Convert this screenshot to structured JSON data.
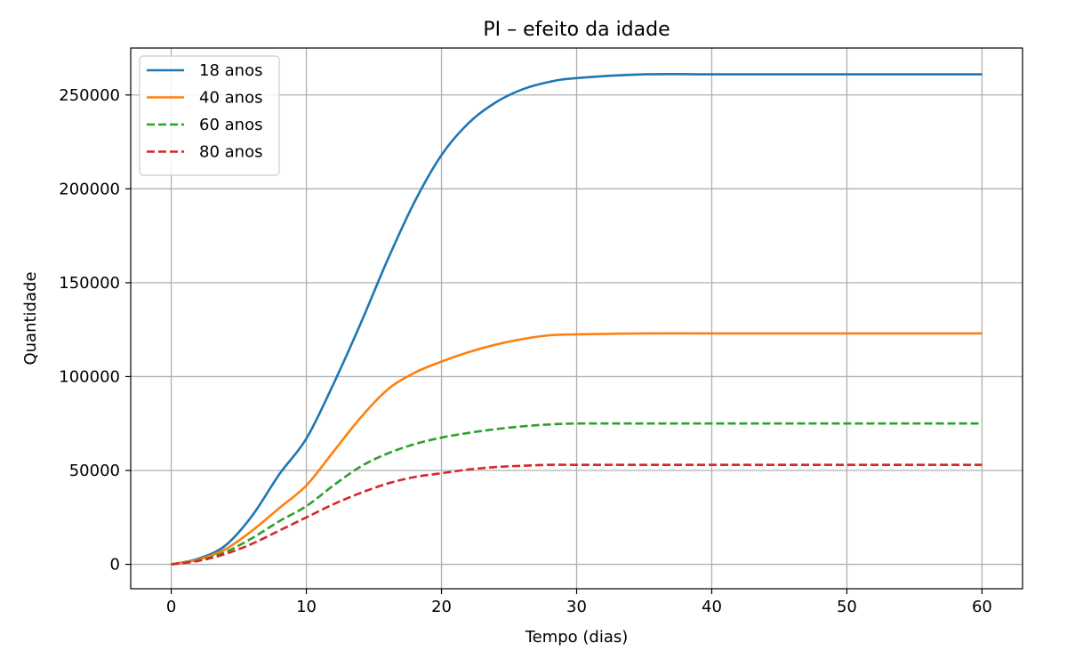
{
  "chart_data": {
    "type": "line",
    "title": "PI – efeito da idade",
    "xlabel": "Tempo (dias)",
    "ylabel": "Quantidade",
    "xlim": [
      -3,
      63
    ],
    "ylim": [
      -13000,
      275000
    ],
    "xticks": [
      0,
      10,
      20,
      30,
      40,
      50,
      60
    ],
    "yticks": [
      0,
      50000,
      100000,
      150000,
      200000,
      250000
    ],
    "grid": true,
    "legend_position": "top-left",
    "x": [
      0,
      2,
      4,
      6,
      8,
      10,
      12,
      14,
      16,
      18,
      20,
      22,
      24,
      26,
      28,
      30,
      35,
      40,
      45,
      50,
      55,
      60
    ],
    "series": [
      {
        "name": "18 anos",
        "color": "#1f77b4",
        "dash": "solid",
        "values": [
          0,
          3000,
          10000,
          26000,
          48000,
          67000,
          96000,
          128000,
          162000,
          193000,
          218000,
          235000,
          246000,
          253000,
          257000,
          259000,
          261000,
          261000,
          261000,
          261000,
          261000,
          261000
        ]
      },
      {
        "name": "40 anos",
        "color": "#ff7f0e",
        "dash": "solid",
        "values": [
          0,
          2500,
          8000,
          18000,
          30000,
          42000,
          60000,
          78000,
          93000,
          102000,
          108000,
          113000,
          117000,
          120000,
          122000,
          122500,
          123000,
          123000,
          123000,
          123000,
          123000,
          123000
        ]
      },
      {
        "name": "60 anos",
        "color": "#2ca02c",
        "dash": "dashed",
        "values": [
          0,
          2000,
          6500,
          14000,
          23000,
          31000,
          42000,
          52000,
          59000,
          64000,
          67500,
          70000,
          72000,
          73500,
          74500,
          75000,
          75000,
          75000,
          75000,
          75000,
          75000,
          75000
        ]
      },
      {
        "name": "80 anos",
        "color": "#d62728",
        "dash": "dashed",
        "values": [
          0,
          1800,
          5500,
          11000,
          18000,
          25000,
          32000,
          38000,
          43000,
          46500,
          48500,
          50500,
          51800,
          52500,
          53000,
          53000,
          53000,
          53000,
          53000,
          53000,
          53000,
          53000
        ]
      }
    ]
  }
}
